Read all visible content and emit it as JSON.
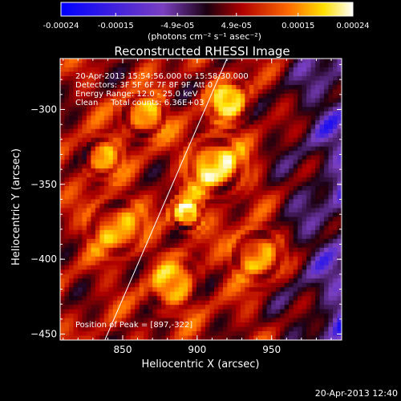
{
  "colorbar": {
    "tick_labels": [
      "-0.00024",
      "-0.00015",
      "-4.9e-05",
      "4.9e-05",
      "0.00015",
      "0.00024"
    ],
    "unit_label": "(photons cm⁻² s⁻¹ asec⁻²)"
  },
  "chart_data": {
    "type": "heatmap",
    "title": "Reconstructed RHESSI Image",
    "xlabel": "Heliocentric X (arcsec)",
    "ylabel": "Heliocentric Y (arcsec)",
    "xlim": [
      808,
      997
    ],
    "ylim": [
      -454,
      -266
    ],
    "x_ticks": [
      850,
      900,
      950
    ],
    "y_ticks": [
      -300,
      -350,
      -400,
      -450
    ],
    "x_tick_labels": [
      "850",
      "900",
      "950"
    ],
    "y_tick_labels": [
      "−300",
      "−350",
      "−400",
      "−450"
    ],
    "value_range": [
      -0.00024,
      0.00024
    ],
    "peak": [
      897,
      -322
    ],
    "limb_line": {
      "x": [
        838,
        920
      ],
      "y": [
        -454,
        -266
      ]
    },
    "annotations": [
      "20-Apr-2013 15:54:56.000 to 15:58:30.000",
      "Detectors: 3F 5F 6F 7F 8F 9F  Att 0",
      "Energy Range: 12.0 - 25.0 keV",
      "Clean     Total counts: 6.36E+03"
    ],
    "peak_label": "Position of Peak = [897,-322]",
    "colormap": [
      "#0000ff",
      "#7a3fc0",
      "#1a0010",
      "#b00000",
      "#ff6a00",
      "#ffe000",
      "#ffffff"
    ]
  },
  "footer": {
    "timestamp": "20-Apr-2013 12:40"
  }
}
